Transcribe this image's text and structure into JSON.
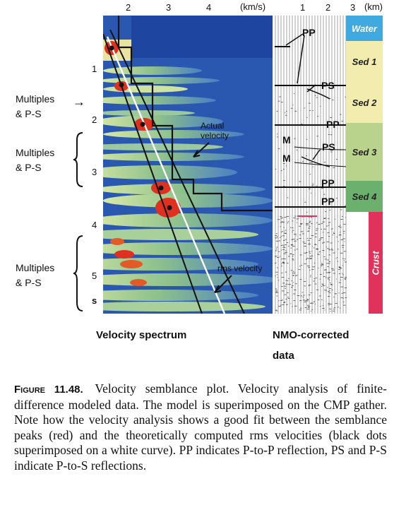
{
  "axes": {
    "velocity_ticks": [
      "2",
      "3",
      "4"
    ],
    "velocity_unit": "(km/s)",
    "distance_ticks": [
      "1",
      "2",
      "3"
    ],
    "distance_unit": "(km)",
    "time_ticks": [
      "1",
      "2",
      "3",
      "4",
      "5"
    ],
    "time_unit": "s"
  },
  "side_notes": {
    "first": [
      "Multiples",
      "& P-S"
    ],
    "second": [
      "Multiples",
      "& P-S"
    ],
    "third": [
      "Multiples",
      "& P-S"
    ]
  },
  "spectrum_labels": {
    "actual": [
      "Actual",
      "velocity"
    ],
    "rms": "rms velocity"
  },
  "gather_labels": {
    "pp": "PP",
    "ps": "PS",
    "m": "M"
  },
  "layers": [
    {
      "name": "Water",
      "color": "#3fa9e0"
    },
    {
      "name": "Sed 1",
      "color": "#f2ecae"
    },
    {
      "name": "Sed 2",
      "color": "#f2ecae"
    },
    {
      "name": "Sed 3",
      "color": "#b9d38d"
    },
    {
      "name": "Sed 4",
      "color": "#6cb06d"
    },
    {
      "name": "Crust",
      "color": "#e0325a"
    }
  ],
  "panel_titles": {
    "left": "Velocity spectrum",
    "right_line1": "NMO-corrected",
    "right_line2": "data"
  },
  "caption": {
    "figure_label": "Figure 11.48.",
    "text": "Velocity semblance plot. Velocity analysis of finite-difference modeled data. The model is superimposed on the CMP gather. Note how the velocity analysis shows a good fit between the semblance peaks (red) and the theoretically computed rms velocities (black dots superimposed on a white curve). PP indicates P-to-P reflection, PS and P-S indicate P-to-S reflections."
  }
}
